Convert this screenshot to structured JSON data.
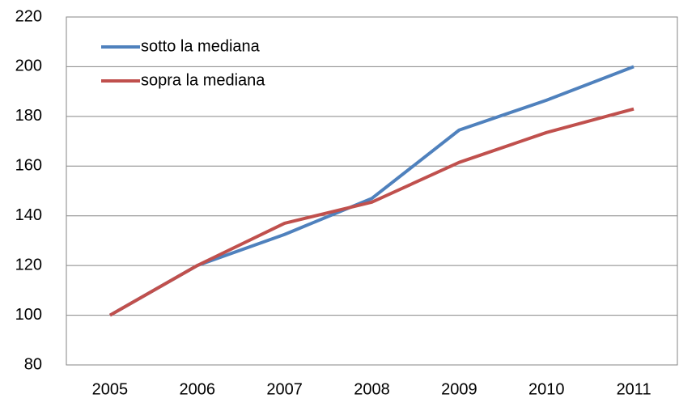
{
  "chart_data": {
    "type": "line",
    "categories": [
      "2005",
      "2006",
      "2007",
      "2008",
      "2009",
      "2010",
      "2011"
    ],
    "series": [
      {
        "name": "sotto la mediana",
        "color": "#4f81bd",
        "values": [
          100,
          120,
          132.5,
          147,
          174.5,
          186.5,
          200
        ]
      },
      {
        "name": "sopra la mediana",
        "color": "#c0504d",
        "values": [
          100,
          120,
          137,
          145.5,
          161.5,
          173.5,
          183
        ]
      }
    ],
    "ylim": [
      80,
      220
    ],
    "yticks": [
      80,
      100,
      120,
      140,
      160,
      180,
      200,
      220
    ],
    "grid": true,
    "legend": "upper-left"
  }
}
